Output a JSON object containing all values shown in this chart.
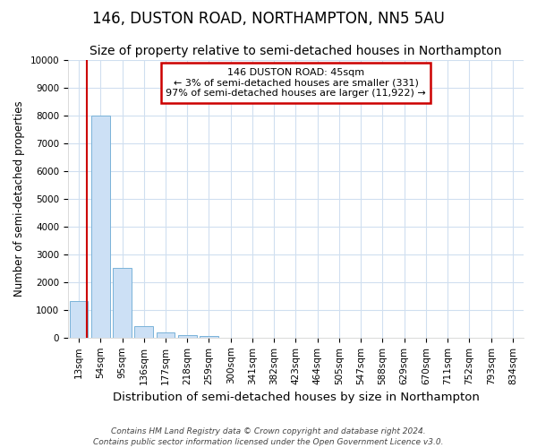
{
  "title": "146, DUSTON ROAD, NORTHAMPTON, NN5 5AU",
  "subtitle": "Size of property relative to semi-detached houses in Northampton",
  "xlabel": "Distribution of semi-detached houses by size in Northampton",
  "ylabel": "Number of semi-detached properties",
  "footer1": "Contains HM Land Registry data © Crown copyright and database right 2024.",
  "footer2": "Contains public sector information licensed under the Open Government Licence v3.0.",
  "categories": [
    "13sqm",
    "54sqm",
    "95sqm",
    "136sqm",
    "177sqm",
    "218sqm",
    "259sqm",
    "300sqm",
    "341sqm",
    "382sqm",
    "423sqm",
    "464sqm",
    "505sqm",
    "547sqm",
    "588sqm",
    "629sqm",
    "670sqm",
    "711sqm",
    "752sqm",
    "793sqm",
    "834sqm"
  ],
  "values": [
    1300,
    8000,
    2500,
    400,
    200,
    100,
    50,
    0,
    0,
    0,
    0,
    0,
    0,
    0,
    0,
    0,
    0,
    0,
    0,
    0,
    0
  ],
  "bar_color": "#cce0f5",
  "bar_edgecolor": "#7ab3d9",
  "highlight_color": "#cc0000",
  "annotation_line1": "146 DUSTON ROAD: 45sqm",
  "annotation_line2": "← 3% of semi-detached houses are smaller (331)",
  "annotation_line3": "97% of semi-detached houses are larger (11,922) →",
  "annotation_box_color": "white",
  "annotation_box_edgecolor": "#cc0000",
  "vline_x": 0.38,
  "ylim": [
    0,
    10000
  ],
  "yticks": [
    0,
    1000,
    2000,
    3000,
    4000,
    5000,
    6000,
    7000,
    8000,
    9000,
    10000
  ],
  "background_color": "#ffffff",
  "grid_color": "#d0dff0",
  "title_fontsize": 12,
  "subtitle_fontsize": 10,
  "tick_fontsize": 7.5,
  "ylabel_fontsize": 8.5,
  "xlabel_fontsize": 9.5,
  "footer_fontsize": 6.5
}
